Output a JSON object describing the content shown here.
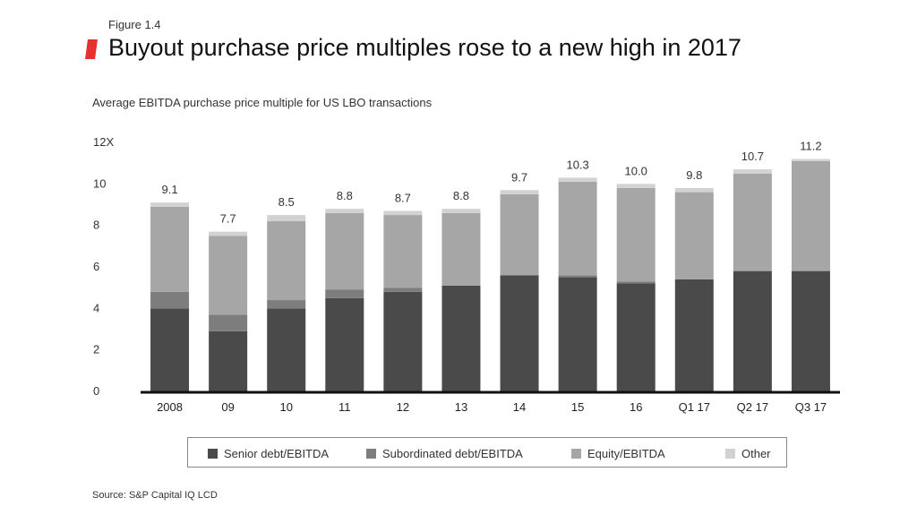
{
  "figure_label": "Figure 1.4",
  "title": "Buyout purchase price multiples rose to a new high in 2017",
  "subtitle": "Average EBITDA purchase price multiple for US LBO transactions",
  "source": "Source: S&P Capital IQ LCD",
  "colors": {
    "accent": "#e8312f",
    "senior": "#4a4a4a",
    "subordinated": "#7d7d7d",
    "equity": "#a6a6a6",
    "other": "#d2d2d2"
  },
  "chart_data": {
    "type": "bar",
    "stacked": true,
    "categories": [
      "2008",
      "09",
      "10",
      "11",
      "12",
      "13",
      "14",
      "15",
      "16",
      "Q1 17",
      "Q2 17",
      "Q3 17"
    ],
    "totals": [
      "9.1",
      "7.7",
      "8.5",
      "8.8",
      "8.7",
      "8.8",
      "9.7",
      "10.3",
      "10.0",
      "9.8",
      "10.7",
      "11.2"
    ],
    "total_values": [
      9.1,
      7.7,
      8.5,
      8.8,
      8.7,
      8.8,
      9.7,
      10.3,
      10.0,
      9.8,
      10.7,
      11.2
    ],
    "series": [
      {
        "name": "Senior debt/EBITDA",
        "color": "#4a4a4a",
        "values": [
          4.0,
          2.9,
          4.0,
          4.5,
          4.8,
          5.1,
          5.6,
          5.5,
          5.2,
          5.4,
          5.8,
          5.8
        ]
      },
      {
        "name": "Subordinated debt/EBITDA",
        "color": "#7d7d7d",
        "values": [
          0.8,
          0.8,
          0.4,
          0.4,
          0.2,
          0.0,
          0.0,
          0.1,
          0.1,
          0.0,
          0.0,
          0.0
        ]
      },
      {
        "name": "Equity/EBITDA",
        "color": "#a6a6a6",
        "values": [
          4.1,
          3.8,
          3.8,
          3.7,
          3.5,
          3.5,
          3.9,
          4.5,
          4.5,
          4.2,
          4.7,
          5.3
        ]
      },
      {
        "name": "Other",
        "color": "#d2d2d2",
        "values": [
          0.2,
          0.2,
          0.3,
          0.2,
          0.2,
          0.2,
          0.2,
          0.2,
          0.2,
          0.2,
          0.2,
          0.1
        ]
      }
    ],
    "y_ticks": [
      "0",
      "2",
      "4",
      "6",
      "8",
      "10",
      "12X"
    ],
    "ylim": [
      0,
      12
    ],
    "grid": false,
    "legend_position": "bottom"
  }
}
